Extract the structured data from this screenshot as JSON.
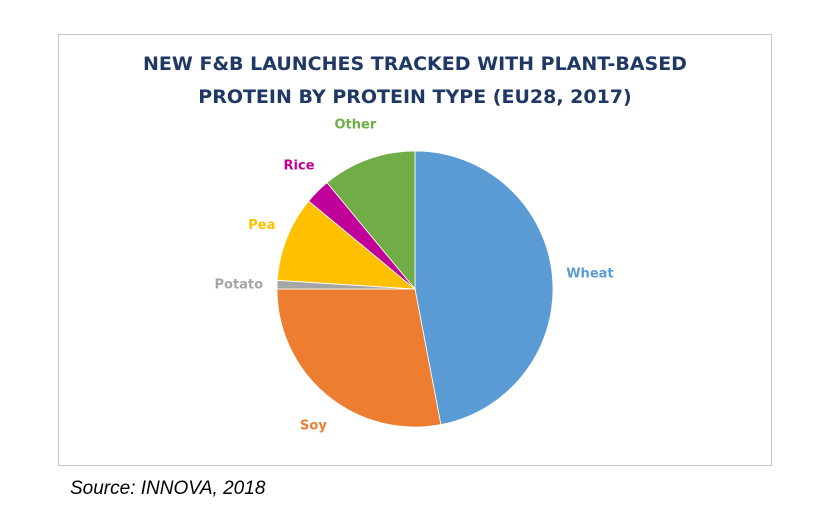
{
  "chart_data": {
    "type": "pie",
    "title_line1": "NEW F&B LAUNCHES TRACKED WITH PLANT-BASED",
    "title_line2": "PROTEIN BY PROTEIN TYPE (EU28, 2017)",
    "slices": [
      {
        "label": "Wheat",
        "value": 47.0,
        "color": "#5b9bd5"
      },
      {
        "label": "Soy",
        "value": 28.0,
        "color": "#ed7d31"
      },
      {
        "label": "Potato",
        "value": 1.0,
        "color": "#a5a5a5"
      },
      {
        "label": "Pea",
        "value": 10.0,
        "color": "#ffc000"
      },
      {
        "label": "Rice",
        "value": 3.0,
        "color": "#c00099"
      },
      {
        "label": "Other",
        "value": 11.0,
        "color": "#70ad47"
      }
    ],
    "start_angle_deg": 0,
    "direction": "clockwise"
  },
  "source": "Source: INNOVA, 2018"
}
